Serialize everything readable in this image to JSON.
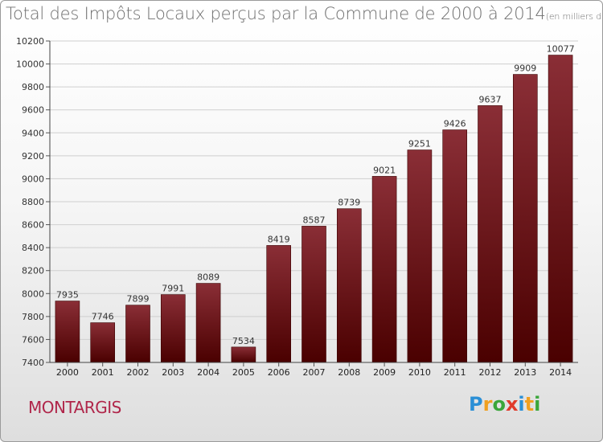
{
  "chart_data": {
    "type": "bar",
    "title": "Total des Impôts Locaux perçus par la Commune de 2000 à 2014",
    "unit_note": "(en milliers d'€)",
    "categories": [
      "2000",
      "2001",
      "2002",
      "2003",
      "2004",
      "2005",
      "2006",
      "2007",
      "2008",
      "2009",
      "2010",
      "2011",
      "2012",
      "2013",
      "2014"
    ],
    "values": [
      7935,
      7746,
      7899,
      7991,
      8089,
      7534,
      8419,
      8587,
      8739,
      9021,
      9251,
      9426,
      9637,
      9909,
      10077
    ],
    "ylim": [
      7400,
      10200
    ],
    "yticks": [
      7400,
      7600,
      7800,
      8000,
      8200,
      8400,
      8600,
      8800,
      9000,
      9200,
      9400,
      9600,
      9800,
      10000,
      10200
    ],
    "grid": true,
    "bar_color_top": "#8a2e36",
    "bar_color_bottom": "#4a0000",
    "xlabel": "",
    "ylabel": ""
  },
  "commune_name": "MONTARGIS",
  "logo": {
    "letters": [
      "P",
      "r",
      "o",
      "x",
      "i",
      "t",
      "i"
    ],
    "colors": [
      "#2a8fd6",
      "#f0a020",
      "#3aa63a",
      "#e03a2a",
      "#2a8fd6",
      "#f0a020",
      "#3aa63a"
    ]
  }
}
